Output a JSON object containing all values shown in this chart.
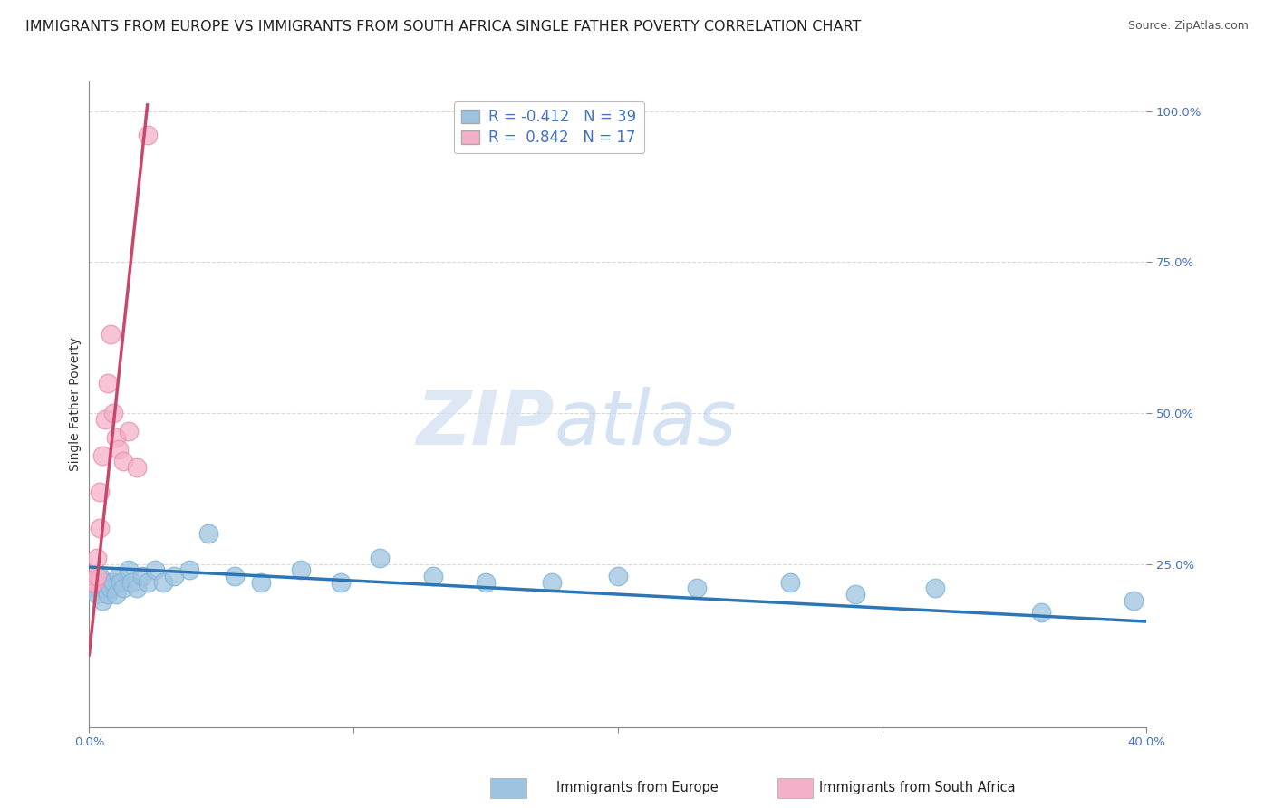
{
  "title": "IMMIGRANTS FROM EUROPE VS IMMIGRANTS FROM SOUTH AFRICA SINGLE FATHER POVERTY CORRELATION CHART",
  "source": "Source: ZipAtlas.com",
  "ylabel": "Single Father Poverty",
  "watermark_zip": "ZIP",
  "watermark_atlas": "atlas",
  "europe_color": "#9dc3e0",
  "europe_edge_color": "#7fb3d9",
  "sa_color": "#f4b0c8",
  "sa_edge_color": "#e890b0",
  "europe_line_color": "#2e75b6",
  "sa_line_color": "#c9486a",
  "background_color": "#ffffff",
  "grid_color": "#d0d0d0",
  "ytick_color": "#4472c4",
  "legend_label_europe": "Immigrants from Europe",
  "legend_label_sa": "Immigrants from South Africa",
  "legend_r1": "R = -0.412",
  "legend_n1": "N = 39",
  "legend_r2": "R =  0.842",
  "legend_n2": "N = 17",
  "xlim": [
    0.0,
    0.4
  ],
  "ylim": [
    -0.02,
    1.05
  ],
  "europe_points_x": [
    0.001,
    0.002,
    0.003,
    0.004,
    0.005,
    0.005,
    0.006,
    0.007,
    0.008,
    0.009,
    0.01,
    0.011,
    0.012,
    0.013,
    0.015,
    0.016,
    0.018,
    0.02,
    0.022,
    0.025,
    0.028,
    0.032,
    0.038,
    0.045,
    0.055,
    0.065,
    0.08,
    0.095,
    0.11,
    0.13,
    0.15,
    0.175,
    0.2,
    0.23,
    0.265,
    0.29,
    0.32,
    0.36,
    0.395
  ],
  "europe_points_y": [
    0.21,
    0.22,
    0.2,
    0.23,
    0.21,
    0.19,
    0.22,
    0.2,
    0.21,
    0.22,
    0.2,
    0.23,
    0.22,
    0.21,
    0.24,
    0.22,
    0.21,
    0.23,
    0.22,
    0.24,
    0.22,
    0.23,
    0.24,
    0.3,
    0.23,
    0.22,
    0.24,
    0.22,
    0.26,
    0.23,
    0.22,
    0.22,
    0.23,
    0.21,
    0.22,
    0.2,
    0.21,
    0.17,
    0.19
  ],
  "sa_points_x": [
    0.001,
    0.002,
    0.003,
    0.003,
    0.004,
    0.004,
    0.005,
    0.006,
    0.007,
    0.008,
    0.009,
    0.01,
    0.011,
    0.013,
    0.015,
    0.018,
    0.022
  ],
  "sa_points_y": [
    0.22,
    0.22,
    0.23,
    0.26,
    0.31,
    0.37,
    0.43,
    0.49,
    0.55,
    0.63,
    0.5,
    0.46,
    0.44,
    0.42,
    0.47,
    0.41,
    0.96
  ],
  "eu_line_x0": 0.0,
  "eu_line_x1": 0.4,
  "eu_line_y0": 0.245,
  "eu_line_y1": 0.155,
  "sa_line_x0": 0.0,
  "sa_line_x1": 0.022,
  "sa_line_y0": 0.1,
  "sa_line_y1": 1.01,
  "title_fontsize": 11.5,
  "source_fontsize": 9,
  "ylabel_fontsize": 10,
  "tick_fontsize": 9.5,
  "legend_fontsize": 12,
  "watermark_fontsize_zip": 60,
  "watermark_fontsize_atlas": 60
}
